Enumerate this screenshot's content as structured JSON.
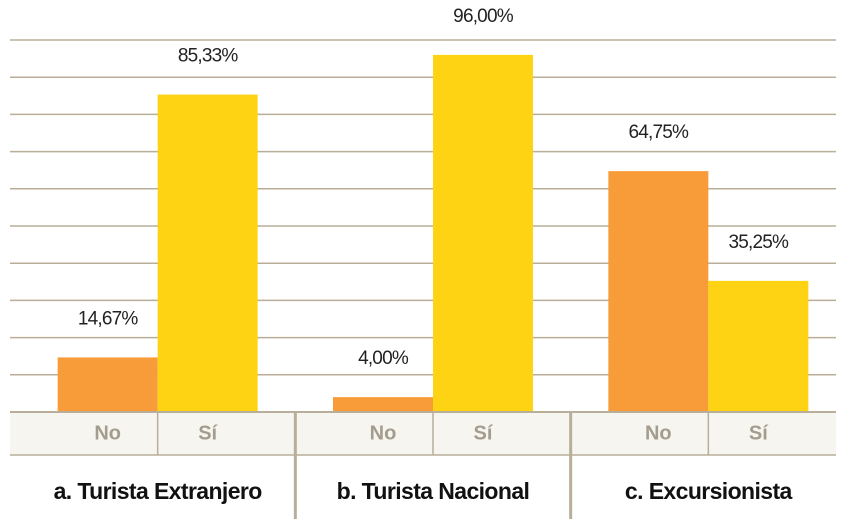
{
  "chart_data": {
    "type": "bar",
    "categories": [
      "a. Turista Extranjero",
      "b. Turista Nacional",
      "c. Excursionista"
    ],
    "series": [
      {
        "name": "No",
        "color": "#f79c39",
        "values": [
          14.67,
          4.0,
          64.75
        ],
        "value_labels": [
          "14,67%",
          "4,00%",
          "64,75%"
        ]
      },
      {
        "name": "Sí",
        "color": "#fdd314",
        "values": [
          85.33,
          96.0,
          35.25
        ],
        "value_labels": [
          "85,33%",
          "96,00%",
          "35,25%"
        ]
      }
    ],
    "ylim": [
      0,
      100
    ],
    "yticks": [
      0,
      10,
      20,
      30,
      40,
      50,
      60,
      70,
      80,
      90,
      100
    ],
    "grid": true
  }
}
